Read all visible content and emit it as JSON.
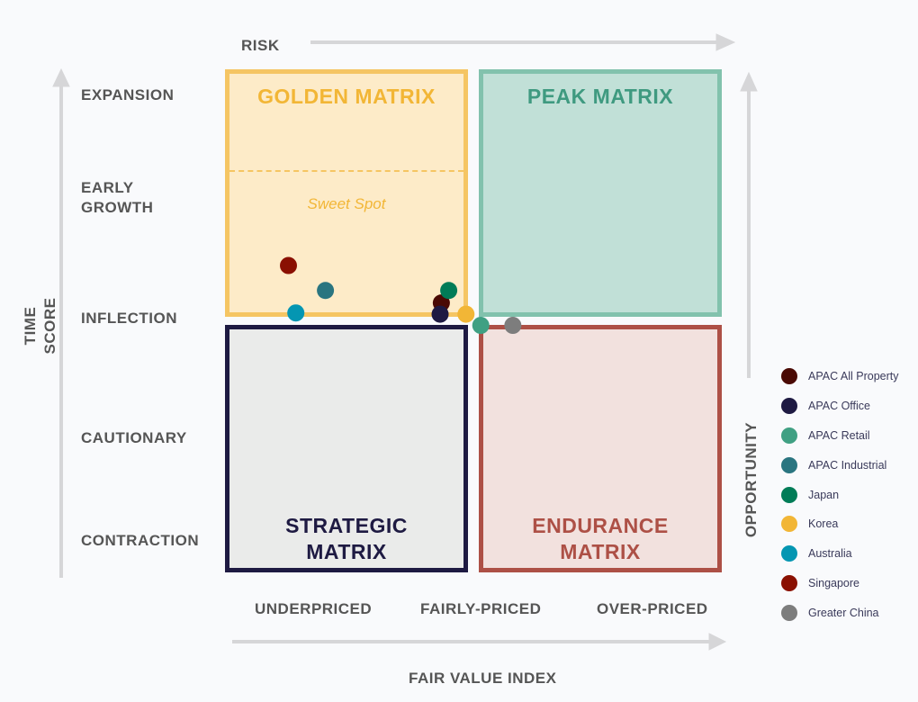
{
  "chart_data": {
    "type": "scatter",
    "title": "",
    "xlabel": "FAIR VALUE INDEX",
    "ylabel": "TIME SCORE",
    "top_axis_label": "RISK",
    "right_axis_label": "OPPORTUNITY",
    "xlim": [
      -1,
      1
    ],
    "ylim": [
      -1,
      1
    ],
    "x_ticks": [
      "UNDERPRICED",
      "FAIRLY-PRICED",
      "OVER-PRICED"
    ],
    "y_ticks": [
      "EXPANSION",
      "EARLY GROWTH",
      "INFLECTION",
      "CAUTIONARY",
      "CONTRACTION"
    ],
    "quadrants": {
      "golden": {
        "title": "GOLDEN MATRIX",
        "annotation": "Sweet Spot",
        "color": "#f5c563",
        "fill": "#fdebc8"
      },
      "peak": {
        "title": "PEAK MATRIX",
        "color": "#82c2ad",
        "fill": "#c1e0d7",
        "text_color": "#3f9a80"
      },
      "strategic": {
        "title_line1": "STRATEGIC",
        "title_line2": "MATRIX",
        "color": "#1e1a42",
        "fill": "#eaebea"
      },
      "endurance": {
        "title_line1": "ENDURANCE",
        "title_line2": "MATRIX",
        "color": "#ad5046",
        "fill": "#f2e1de"
      }
    },
    "series": [
      {
        "name": "APAC All Property",
        "color": "#4a0a04",
        "x": -0.13,
        "y": 0.07
      },
      {
        "name": "APAC Office",
        "color": "#1e1a42",
        "x": -0.135,
        "y": 0.025
      },
      {
        "name": "APAC Retail",
        "color": "#40a083",
        "x": 0.03,
        "y": -0.02
      },
      {
        "name": "APAC Industrial",
        "color": "#2a7580",
        "x": -0.6,
        "y": 0.12
      },
      {
        "name": "Japan",
        "color": "#017c57",
        "x": -0.1,
        "y": 0.12
      },
      {
        "name": "Korea",
        "color": "#f2b636",
        "x": -0.03,
        "y": 0.025
      },
      {
        "name": "Australia",
        "color": "#0496b2",
        "x": -0.72,
        "y": 0.03
      },
      {
        "name": "Singapore",
        "color": "#8a1002",
        "x": -0.75,
        "y": 0.22
      },
      {
        "name": "Greater China",
        "color": "#7d7d7d",
        "x": 0.16,
        "y": -0.02
      }
    ],
    "legend_position": "right"
  }
}
